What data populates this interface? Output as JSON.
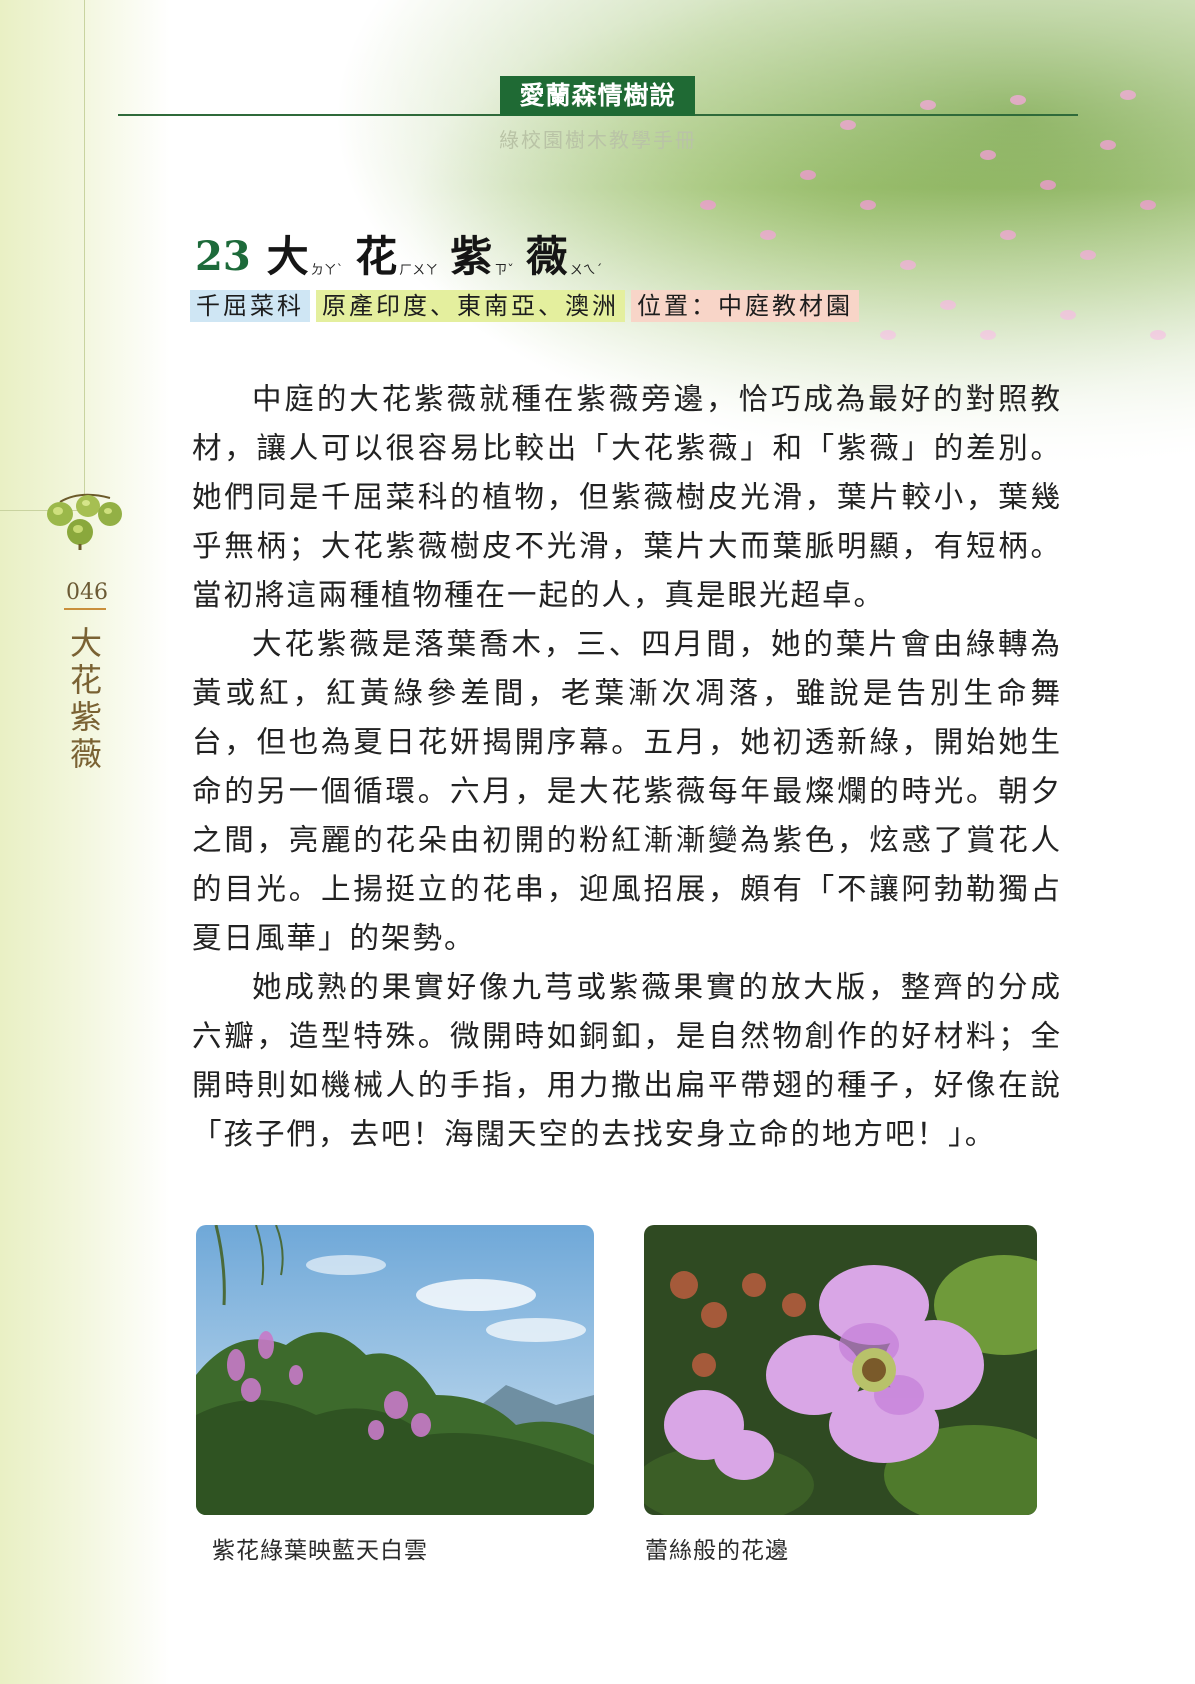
{
  "header": {
    "title": "愛蘭森情樹說",
    "subtitle": "綠校園樹木教學手冊"
  },
  "article": {
    "number": "23",
    "chars": [
      {
        "char": "大",
        "zhuyin": "ㄉㄚˋ"
      },
      {
        "char": "花",
        "zhuyin": "ㄏㄨㄚ"
      },
      {
        "char": "紫",
        "zhuyin": "ㄗˇ"
      },
      {
        "char": "薇",
        "zhuyin": "ㄨㄟˊ"
      }
    ],
    "tags": {
      "family": "千屈菜科",
      "origin": "原產印度、東南亞、澳洲",
      "location": "位置：中庭教材園"
    },
    "paragraphs": [
      "中庭的大花紫薇就種在紫薇旁邊，恰巧成為最好的對照教材，讓人可以很容易比較出「大花紫薇」和「紫薇」的差別。她們同是千屈菜科的植物，但紫薇樹皮光滑，葉片較小，葉幾乎無柄；大花紫薇樹皮不光滑，葉片大而葉脈明顯，有短柄。當初將這兩種植物種在一起的人，真是眼光超卓。",
      "大花紫薇是落葉喬木，三、四月間，她的葉片會由綠轉為黃或紅，紅黃綠參差間，老葉漸次凋落，雖說是告別生命舞台，但也為夏日花妍揭開序幕。五月，她初透新綠，開始她生命的另一個循環。六月，是大花紫薇每年最燦爛的時光。朝夕之間，亮麗的花朵由初開的粉紅漸漸變為紫色，炫惑了賞花人的目光。上揚挺立的花串，迎風招展，頗有「不讓阿勃勒獨占夏日風華」的架勢。",
      "她成熟的果實好像九芎或紫薇果實的放大版，整齊的分成六瓣，造型特殊。微開時如銅釦，是自然物創作的好材料；全開時則如機械人的手指，用力撒出扁平帶翅的種子，好像在說「孩子們，去吧！海闊天空的去找安身立命的地方吧！」。"
    ]
  },
  "side": {
    "page_number": "046",
    "title_chars": [
      "大",
      "花",
      "紫",
      "薇"
    ]
  },
  "photos": [
    {
      "caption": "紫花綠葉映藍天白雲",
      "icon": "tree-sky-photo"
    },
    {
      "caption": "蕾絲般的花邊",
      "icon": "flower-closeup-photo"
    }
  ],
  "colors": {
    "header_green": "#1f6a34",
    "tag_family": "#cfe6f4",
    "tag_origin": "#e4ef9e",
    "tag_location": "#f8d5c8"
  }
}
